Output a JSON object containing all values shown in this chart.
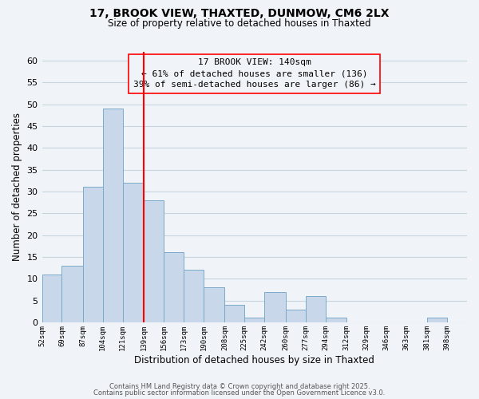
{
  "title": "17, BROOK VIEW, THAXTED, DUNMOW, CM6 2LX",
  "subtitle": "Size of property relative to detached houses in Thaxted",
  "xlabel": "Distribution of detached houses by size in Thaxted",
  "ylabel": "Number of detached properties",
  "bar_color": "#c8d8ea",
  "bar_edge_color": "#7aaac8",
  "bins": [
    52,
    69,
    87,
    104,
    121,
    139,
    156,
    173,
    190,
    208,
    225,
    242,
    260,
    277,
    294,
    312,
    329,
    346,
    363,
    381,
    398
  ],
  "counts": [
    11,
    13,
    31,
    49,
    32,
    28,
    16,
    12,
    8,
    4,
    1,
    7,
    3,
    6,
    1,
    0,
    0,
    0,
    0,
    1
  ],
  "tick_labels": [
    "52sqm",
    "69sqm",
    "87sqm",
    "104sqm",
    "121sqm",
    "139sqm",
    "156sqm",
    "173sqm",
    "190sqm",
    "208sqm",
    "225sqm",
    "242sqm",
    "260sqm",
    "277sqm",
    "294sqm",
    "312sqm",
    "329sqm",
    "346sqm",
    "363sqm",
    "381sqm",
    "398sqm"
  ],
  "property_line_x": 139,
  "ylim": [
    0,
    62
  ],
  "yticks": [
    0,
    5,
    10,
    15,
    20,
    25,
    30,
    35,
    40,
    45,
    50,
    55,
    60
  ],
  "annotation_title": "17 BROOK VIEW: 140sqm",
  "annotation_line1": "← 61% of detached houses are smaller (136)",
  "annotation_line2": "39% of semi-detached houses are larger (86) →",
  "footer1": "Contains HM Land Registry data © Crown copyright and database right 2025.",
  "footer2": "Contains public sector information licensed under the Open Government Licence v3.0.",
  "background_color": "#f0f4f8",
  "grid_color": "#c8d4de"
}
